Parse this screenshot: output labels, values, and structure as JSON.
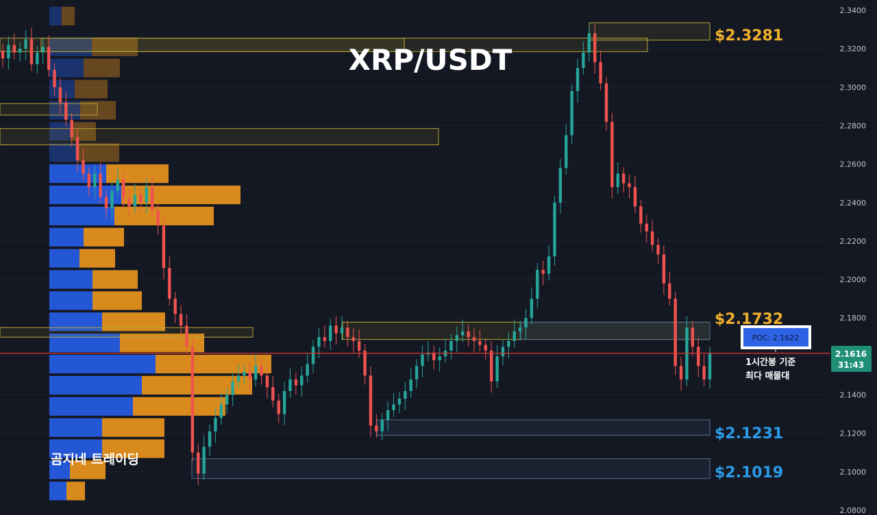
{
  "title": "XRP/USDT",
  "brand": "곰지네 트레이딩",
  "colors": {
    "background": "#141823",
    "up": "#26a69a",
    "down": "#ef5350",
    "vol_buy": "#2457d6",
    "vol_sell": "#d98a1c",
    "gold_level": "#f0b12c",
    "blue_level": "#2b9be8",
    "current_line": "#e53935"
  },
  "price_axis": {
    "ticks": [
      "2.3400",
      "2.3200",
      "2.3000",
      "2.2800",
      "2.2600",
      "2.2400",
      "2.2200",
      "2.2000",
      "2.1800",
      "2.1600",
      "2.1400",
      "2.1200",
      "2.1000",
      "2.0800"
    ]
  },
  "levels": {
    "resistance_high": "$2.3281",
    "resistance_mid": "$2.1732",
    "support_1": "$2.1231",
    "support_2": "$2.1019"
  },
  "poc": {
    "label": "POC: 2.1622"
  },
  "note": {
    "line1": "1시간봉 기준",
    "line2": "최다 매물대"
  },
  "current": {
    "price": "2.1616",
    "countdown": "31:43"
  },
  "chart_data": {
    "type": "candlestick",
    "title": "XRP/USDT",
    "y_range": [
      2.075,
      2.345
    ],
    "current_price": 2.1616,
    "poc": 2.1622,
    "key_levels": [
      2.3281,
      2.1732,
      2.1231,
      2.1019
    ],
    "candles_close": [
      2.315,
      2.322,
      2.318,
      2.32,
      2.325,
      2.312,
      2.318,
      2.321,
      2.309,
      2.3,
      2.292,
      2.283,
      2.274,
      2.262,
      2.255,
      2.248,
      2.255,
      2.243,
      2.237,
      2.246,
      2.252,
      2.242,
      2.238,
      2.244,
      2.24,
      2.248,
      2.236,
      2.228,
      2.206,
      2.19,
      2.182,
      2.176,
      2.165,
      2.11,
      2.099,
      2.113,
      2.121,
      2.128,
      2.135,
      2.14,
      2.147,
      2.15,
      2.152,
      2.148,
      2.155,
      2.15,
      2.144,
      2.137,
      2.13,
      2.142,
      2.148,
      2.145,
      2.15,
      2.156,
      2.165,
      2.17,
      2.168,
      2.176,
      2.172,
      2.175,
      2.17,
      2.168,
      2.163,
      2.15,
      2.124,
      2.121,
      2.127,
      2.132,
      2.135,
      2.138,
      2.142,
      2.148,
      2.155,
      2.161,
      2.162,
      2.158,
      2.16,
      2.163,
      2.168,
      2.171,
      2.173,
      2.17,
      2.168,
      2.166,
      2.163,
      2.147,
      2.16,
      2.165,
      2.168,
      2.173,
      2.175,
      2.18,
      2.19,
      2.205,
      2.203,
      2.212,
      2.24,
      2.258,
      2.275,
      2.298,
      2.31,
      2.318,
      2.328,
      2.313,
      2.302,
      2.282,
      2.248,
      2.255,
      2.25,
      2.248,
      2.238,
      2.229,
      2.225,
      2.218,
      2.213,
      2.198,
      2.19,
      2.155,
      2.148,
      2.175,
      2.165,
      2.155,
      2.148,
      2.1616
    ],
    "volume_profile": [
      {
        "price": 2.337,
        "buy": 18,
        "sell": 19
      },
      {
        "price": 2.321,
        "buy": 62,
        "sell": 67
      },
      {
        "price": 2.31,
        "buy": 50,
        "sell": 53
      },
      {
        "price": 2.299,
        "buy": 37,
        "sell": 48
      },
      {
        "price": 2.288,
        "buy": 45,
        "sell": 52
      },
      {
        "price": 2.277,
        "buy": 31,
        "sell": 37
      },
      {
        "price": 2.266,
        "buy": 42,
        "sell": 60
      },
      {
        "price": 2.255,
        "buy": 83,
        "sell": 91
      },
      {
        "price": 2.244,
        "buy": 105,
        "sell": 174
      },
      {
        "price": 2.233,
        "buy": 95,
        "sell": 145
      },
      {
        "price": 2.222,
        "buy": 50,
        "sell": 59
      },
      {
        "price": 2.211,
        "buy": 44,
        "sell": 52
      },
      {
        "price": 2.2,
        "buy": 63,
        "sell": 66
      },
      {
        "price": 2.189,
        "buy": 63,
        "sell": 72
      },
      {
        "price": 2.178,
        "buy": 77,
        "sell": 92
      },
      {
        "price": 2.167,
        "buy": 103,
        "sell": 123
      },
      {
        "price": 2.156,
        "buy": 155,
        "sell": 169
      },
      {
        "price": 2.145,
        "buy": 135,
        "sell": 161
      },
      {
        "price": 2.134,
        "buy": 122,
        "sell": 135
      },
      {
        "price": 2.123,
        "buy": 77,
        "sell": 91
      },
      {
        "price": 2.112,
        "buy": 77,
        "sell": 91
      },
      {
        "price": 2.101,
        "buy": 30,
        "sell": 52
      },
      {
        "price": 2.09,
        "buy": 25,
        "sell": 27
      }
    ]
  }
}
